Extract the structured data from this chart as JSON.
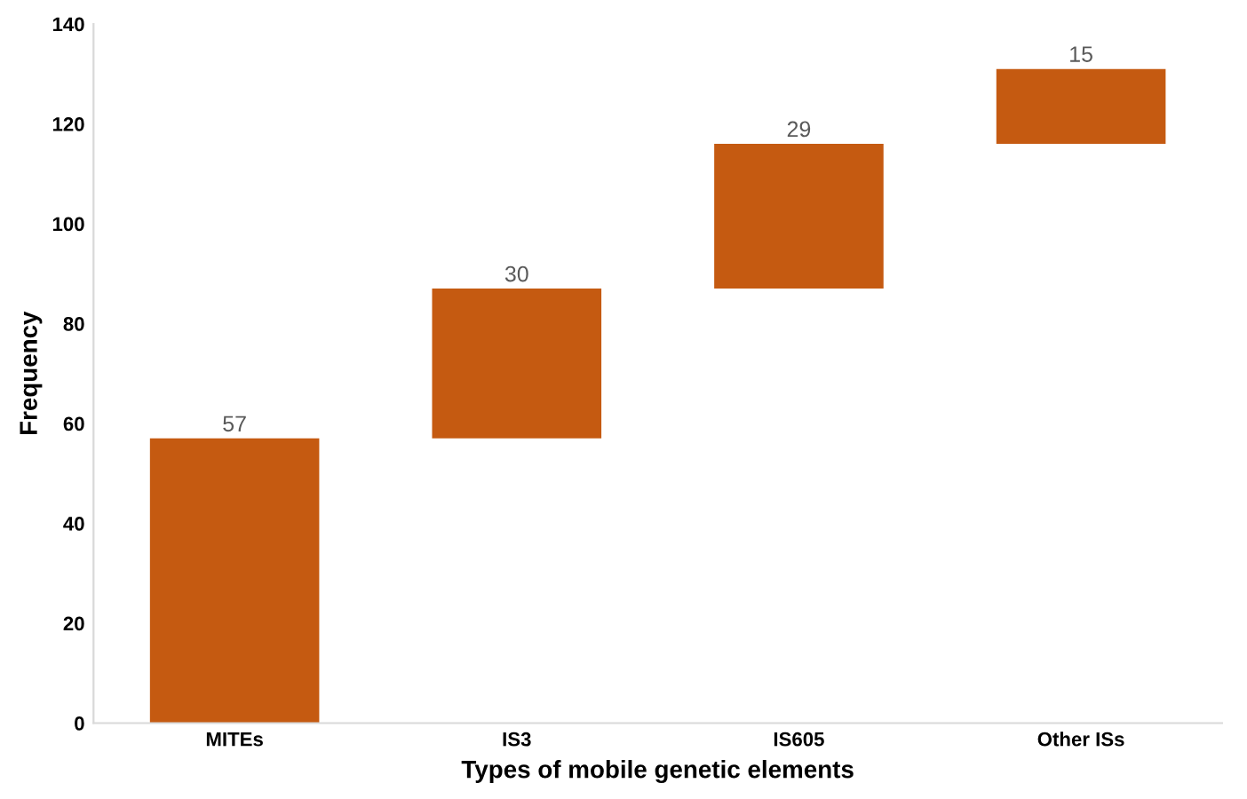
{
  "chart_data": {
    "type": "bar",
    "xlabel": "Types of mobile genetic elements",
    "ylabel": "Frequency",
    "categories": [
      "MITEs",
      "IS3",
      "IS605",
      "Other ISs"
    ],
    "values": [
      57,
      30,
      29,
      15
    ],
    "base": [
      0,
      57,
      87,
      116
    ],
    "color": "#c55a11",
    "ylim": [
      0,
      140
    ],
    "yticks": [
      0,
      20,
      40,
      60,
      80,
      100,
      120,
      140
    ],
    "grid": false,
    "data_labels": true
  }
}
